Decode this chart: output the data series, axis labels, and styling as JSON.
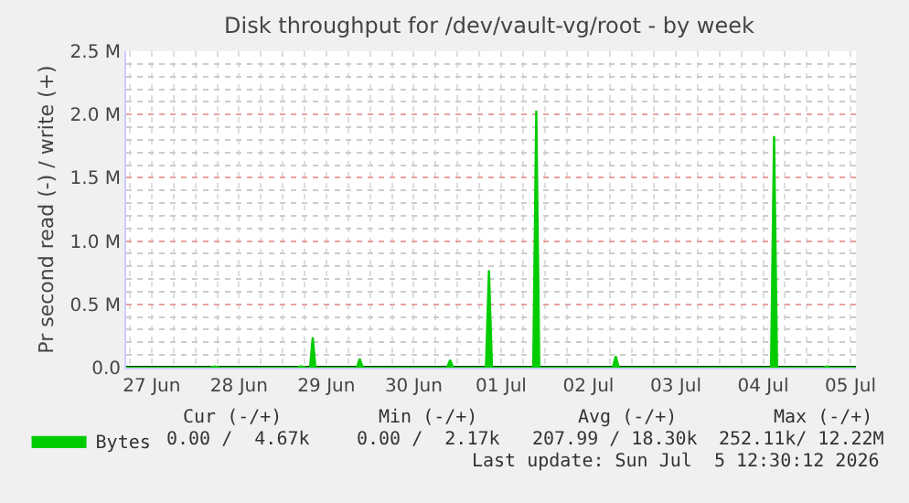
{
  "chart_data": {
    "type": "area",
    "title": "Disk throughput for /dev/vault-vg/root - by week",
    "ylabel": "Pr second read (-) / write (+)",
    "x": [
      "2026-06-27T05:00",
      "2026-06-28T04:00",
      "2026-06-28T05:20",
      "2026-06-28T06:40",
      "2026-06-29T04:00",
      "2026-06-29T05:00",
      "2026-06-29T06:30",
      "2026-06-29T07:30",
      "2026-06-29T08:15",
      "2026-06-29T09:00",
      "2026-06-29T20:20",
      "2026-06-29T21:10",
      "2026-06-29T22:00",
      "2026-06-30T21:10",
      "2026-06-30T22:00",
      "2026-06-30T22:50",
      "2026-07-01T07:50",
      "2026-07-01T08:40",
      "2026-07-01T09:30",
      "2026-07-01T20:50",
      "2026-07-01T21:40",
      "2026-07-01T22:30",
      "2026-07-02T18:40",
      "2026-07-02T19:30",
      "2026-07-02T20:20",
      "2026-07-04T14:10",
      "2026-07-04T15:00",
      "2026-07-04T15:50",
      "2026-07-05T04:40",
      "2026-07-05T05:30",
      "2026-07-05T06:20",
      "2026-07-05T13:30"
    ],
    "series": [
      {
        "name": "Bytes",
        "color": "#00cc00",
        "values": [
          0,
          0,
          10000,
          0,
          0,
          10000,
          0,
          0,
          240000,
          0,
          0,
          70000,
          0,
          0,
          60000,
          0,
          0,
          770000,
          0,
          0,
          2030000,
          0,
          0,
          90000,
          0,
          0,
          1830000,
          0,
          0,
          10000,
          0,
          0
        ]
      }
    ],
    "xlim": [
      "2026-06-27T05:00",
      "2026-07-05T13:30"
    ],
    "xticks": [
      {
        "value": "2026-06-27T12:00",
        "label": "27 Jun"
      },
      {
        "value": "2026-06-28T12:00",
        "label": "28 Jun"
      },
      {
        "value": "2026-06-29T12:00",
        "label": "29 Jun"
      },
      {
        "value": "2026-06-30T12:00",
        "label": "30 Jun"
      },
      {
        "value": "2026-07-01T12:00",
        "label": "01 Jul"
      },
      {
        "value": "2026-07-02T12:00",
        "label": "02 Jul"
      },
      {
        "value": "2026-07-03T12:00",
        "label": "03 Jul"
      },
      {
        "value": "2026-07-04T12:00",
        "label": "04 Jul"
      },
      {
        "value": "2026-07-05T12:00",
        "label": "05 Jul"
      }
    ],
    "ylim": [
      0,
      2500000
    ],
    "yticks": [
      {
        "value": 0,
        "label": "0.0"
      },
      {
        "value": 500000,
        "label": "0.5 M"
      },
      {
        "value": 1000000,
        "label": "1.0 M"
      },
      {
        "value": 1500000,
        "label": "1.5 M"
      },
      {
        "value": 2000000,
        "label": "2.0 M"
      },
      {
        "value": 2500000,
        "label": "2.5 M"
      }
    ],
    "grid": true,
    "legend": "bottom left",
    "annotations": [
      "Cur (-/+)",
      "Min (-/+)",
      "Avg (-/+)",
      "Max (-/+)",
      "0.00 /  4.67k",
      "0.00 /  2.17k",
      "207.99 / 18.30k",
      "252.11k/ 12.22M",
      "Last update: Sun Jul  5 12:30:12 2026"
    ]
  }
}
